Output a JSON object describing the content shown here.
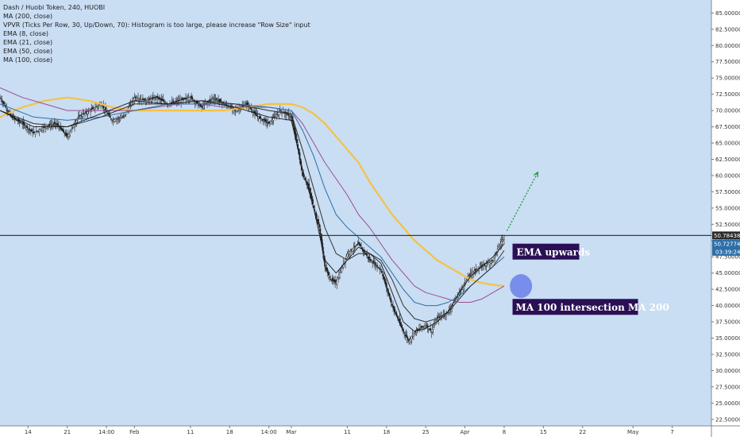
{
  "legend": {
    "title": "Dash / Huobi Token, 240, HUOBI",
    "items": [
      "MA (200, close)",
      "VPVR (Ticks Per Row, 30, Up/Down, 70): Histogram is too large, please increase \"Row Size\" input",
      "EMA (8, close)",
      "EMA (21, close)",
      "EMA (50, close)",
      "MA (100, close)"
    ]
  },
  "colors": {
    "background": "#c9ddf3",
    "ma200": "#f5c242",
    "ma100": "#9c4f8e",
    "ema8": "#1a1a1a",
    "ema21": "#333333",
    "ema50": "#2c6fa8",
    "up_candle": "#222222",
    "down_candle": "#222222",
    "arrow": "#1f9a3a",
    "circle": "#6b7fe8",
    "annotation_bg": "#2a0f55",
    "annotation_text": "#ffffff",
    "last_price_label": "#2b2b2b",
    "second_price_label": "#2c6fa8"
  },
  "chart_data": {
    "type": "line",
    "y_axis": {
      "ticks": [
        85,
        82.5,
        80,
        77.5,
        75,
        72.5,
        70,
        67.5,
        65,
        62.5,
        60,
        57.5,
        55,
        52.5,
        50,
        47.5,
        45,
        42.5,
        40,
        37.5,
        35,
        32.5,
        30,
        27.5,
        25,
        22.5
      ],
      "tick_labels": [
        "85.000000",
        "82.500000",
        "80.000000",
        "77.500000",
        "75.000000",
        "72.500000",
        "70.000000",
        "67.500000",
        "65.000000",
        "62.500000",
        "60.000000",
        "57.500000",
        "55.000000",
        "52.500000",
        "50.000000",
        "47.500000",
        "45.000000",
        "42.500000",
        "40.000000",
        "37.500000",
        "35.000000",
        "32.500000",
        "30.000000",
        "27.500000",
        "25.000000",
        "22.500000"
      ],
      "range": [
        21.5,
        87
      ]
    },
    "x_axis": {
      "labels": [
        "14",
        "21",
        "14:00",
        "Feb",
        "11",
        "18",
        "14:00",
        "Mar",
        "11",
        "18",
        "25",
        "Apr",
        "8",
        "15",
        "22",
        "May",
        "7"
      ],
      "label_days": [
        13,
        20,
        27,
        32,
        42,
        49,
        56,
        60,
        70,
        77,
        84,
        91,
        98,
        105,
        112,
        121,
        128
      ],
      "range_days": [
        8,
        135
      ]
    },
    "price": {
      "days": [
        8,
        10,
        12,
        14,
        16,
        18,
        20,
        22,
        24,
        26,
        28,
        30,
        32,
        34,
        36,
        38,
        40,
        42,
        44,
        46,
        48,
        50,
        52,
        54,
        56,
        58,
        60,
        61,
        62,
        63,
        64,
        65,
        66,
        67,
        68,
        70,
        72,
        74,
        76,
        78,
        80,
        81,
        82,
        84,
        85,
        86,
        88,
        90,
        92,
        94,
        96,
        97,
        98
      ],
      "values": [
        72,
        69,
        68,
        66.5,
        67.5,
        68,
        66,
        69,
        70,
        71,
        68.5,
        69,
        72,
        71.5,
        72,
        71,
        71.5,
        72,
        70.5,
        72,
        71,
        70,
        71,
        69,
        68,
        70,
        69,
        65,
        60,
        58.5,
        55,
        52,
        46,
        44,
        43.5,
        48,
        49.5,
        47,
        45.5,
        40,
        36,
        34.5,
        36,
        37,
        36,
        38,
        39,
        42,
        45,
        46,
        47,
        49,
        50.7
      ]
    },
    "last_price": 50.784388,
    "last_price_label": "50.784388",
    "second_price_label": "50.727740",
    "countdown_label": "03:39:24",
    "series": [
      {
        "name": "MA (200, close)",
        "days": [
          8,
          12,
          16,
          20,
          24,
          28,
          32,
          36,
          40,
          44,
          48,
          52,
          56,
          60,
          62,
          64,
          66,
          68,
          70,
          72,
          74,
          76,
          78,
          80,
          82,
          84,
          86,
          88,
          90,
          92,
          94,
          96,
          98
        ],
        "values": [
          69,
          70.5,
          71.5,
          72,
          71.5,
          70.5,
          70,
          70,
          70,
          70,
          70,
          70.5,
          71,
          71,
          70.5,
          69.5,
          68,
          66,
          64,
          62,
          59,
          56.5,
          54,
          52,
          50,
          48.5,
          47,
          46,
          45,
          44,
          43.5,
          43.2,
          43
        ]
      },
      {
        "name": "MA (100, close)",
        "days": [
          8,
          12,
          16,
          20,
          24,
          28,
          32,
          36,
          40,
          44,
          48,
          52,
          56,
          60,
          62,
          64,
          66,
          68,
          70,
          72,
          74,
          76,
          78,
          80,
          82,
          84,
          86,
          88,
          90,
          92,
          94,
          96,
          98
        ],
        "values": [
          73.5,
          72,
          71,
          70,
          70,
          70,
          70,
          70.5,
          71,
          71,
          70.5,
          70.5,
          70.5,
          70,
          68,
          65,
          62,
          59.5,
          57,
          54,
          52,
          49.5,
          47,
          45,
          43,
          42,
          41.5,
          41,
          40.5,
          40.5,
          41,
          42,
          43
        ]
      },
      {
        "name": "EMA (50, close)",
        "days": [
          8,
          14,
          20,
          26,
          32,
          38,
          44,
          50,
          56,
          60,
          62,
          64,
          66,
          68,
          70,
          72,
          74,
          76,
          78,
          80,
          82,
          84,
          86,
          88,
          90,
          92,
          94,
          96,
          98
        ],
        "values": [
          71,
          69,
          68.5,
          69,
          70,
          71,
          71,
          71,
          70.5,
          70,
          67,
          63,
          58,
          54,
          52,
          50.5,
          49,
          47.5,
          45,
          42.5,
          40.5,
          40,
          40,
          40.5,
          41.5,
          43,
          44.5,
          46,
          47.5
        ]
      },
      {
        "name": "EMA (21, close)",
        "days": [
          8,
          14,
          20,
          26,
          32,
          38,
          44,
          50,
          56,
          60,
          62,
          64,
          66,
          68,
          70,
          72,
          74,
          76,
          78,
          80,
          82,
          84,
          86,
          88,
          90,
          92,
          94,
          96,
          98
        ],
        "values": [
          70,
          68,
          67.5,
          69,
          71,
          71,
          71.5,
          71,
          70,
          69.5,
          64,
          58,
          52,
          48,
          47,
          48,
          48,
          47,
          44,
          40,
          38,
          37.5,
          38,
          39,
          41,
          43,
          44.5,
          46,
          48.5
        ]
      },
      {
        "name": "EMA (8, close)",
        "days": [
          8,
          14,
          20,
          26,
          32,
          38,
          44,
          50,
          56,
          60,
          62,
          64,
          66,
          68,
          70,
          72,
          74,
          76,
          78,
          80,
          82,
          84,
          86,
          88,
          90,
          92,
          94,
          96,
          98
        ],
        "values": [
          70,
          67.5,
          67.5,
          69.5,
          71.5,
          71,
          71.5,
          70.5,
          69,
          68.5,
          61,
          55,
          47,
          45,
          47,
          49,
          48,
          46.5,
          42,
          37.5,
          36,
          36.5,
          37.5,
          39,
          42,
          44.5,
          46,
          47.5,
          49.5
        ]
      }
    ],
    "annotations": [
      {
        "text": "EMA upwards",
        "day": 99.5,
        "value": 48.3
      },
      {
        "text": "MA 100 intersection MA 200",
        "day": 99.5,
        "value": 39.8
      }
    ],
    "arrow": {
      "from_day": 98.5,
      "from_value": 51.5,
      "to_day": 104,
      "to_value": 60.5
    },
    "circle": {
      "day": 101,
      "value": 43
    }
  }
}
